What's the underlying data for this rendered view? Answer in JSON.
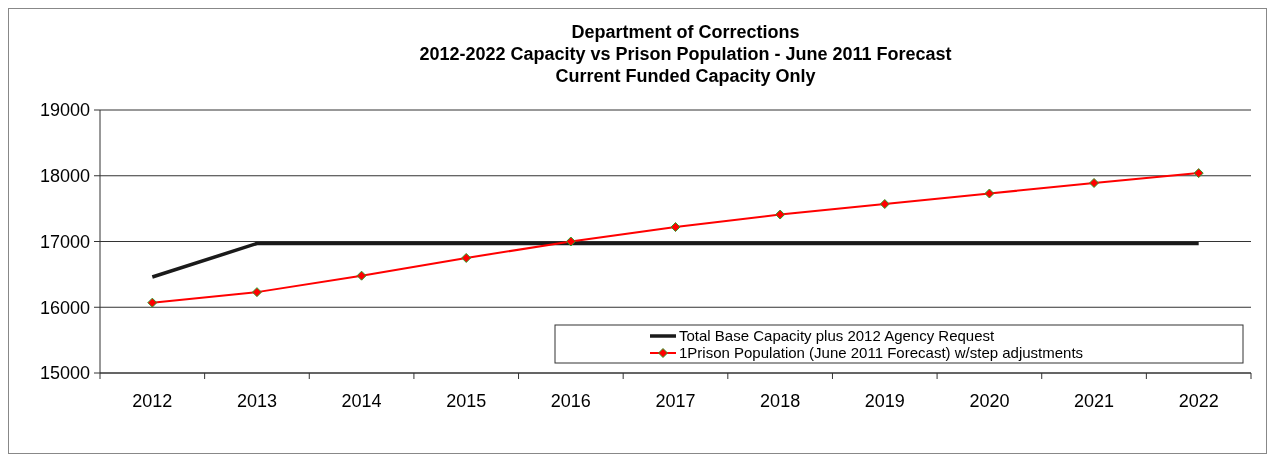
{
  "chart_data": {
    "type": "line",
    "title": "Department of Corrections\n2012-2022 Capacity vs Prison Population - June 2011 Forecast\nCurrent Funded Capacity Only",
    "categories": [
      "2012",
      "2013",
      "2014",
      "2015",
      "2016",
      "2017",
      "2018",
      "2019",
      "2020",
      "2021",
      "2022"
    ],
    "series": [
      {
        "name": "Total Base Capacity plus 2012 Agency Request",
        "color": "#1a1a1a",
        "marker": "none",
        "values": [
          16460,
          16970,
          16970,
          16970,
          16970,
          16970,
          16970,
          16970,
          16970,
          16970,
          16970
        ]
      },
      {
        "name": "1Prison Population (June 2011 Forecast) w/step adjustments",
        "color": "#ff0000",
        "marker": "diamond",
        "values": [
          16070,
          16230,
          16480,
          16750,
          17000,
          17220,
          17410,
          17570,
          17730,
          17890,
          18040
        ]
      }
    ],
    "ylim": [
      15000,
      19000
    ],
    "yticks": [
      15000,
      16000,
      17000,
      18000,
      19000
    ],
    "grid": "y",
    "legend": "bottom right"
  }
}
